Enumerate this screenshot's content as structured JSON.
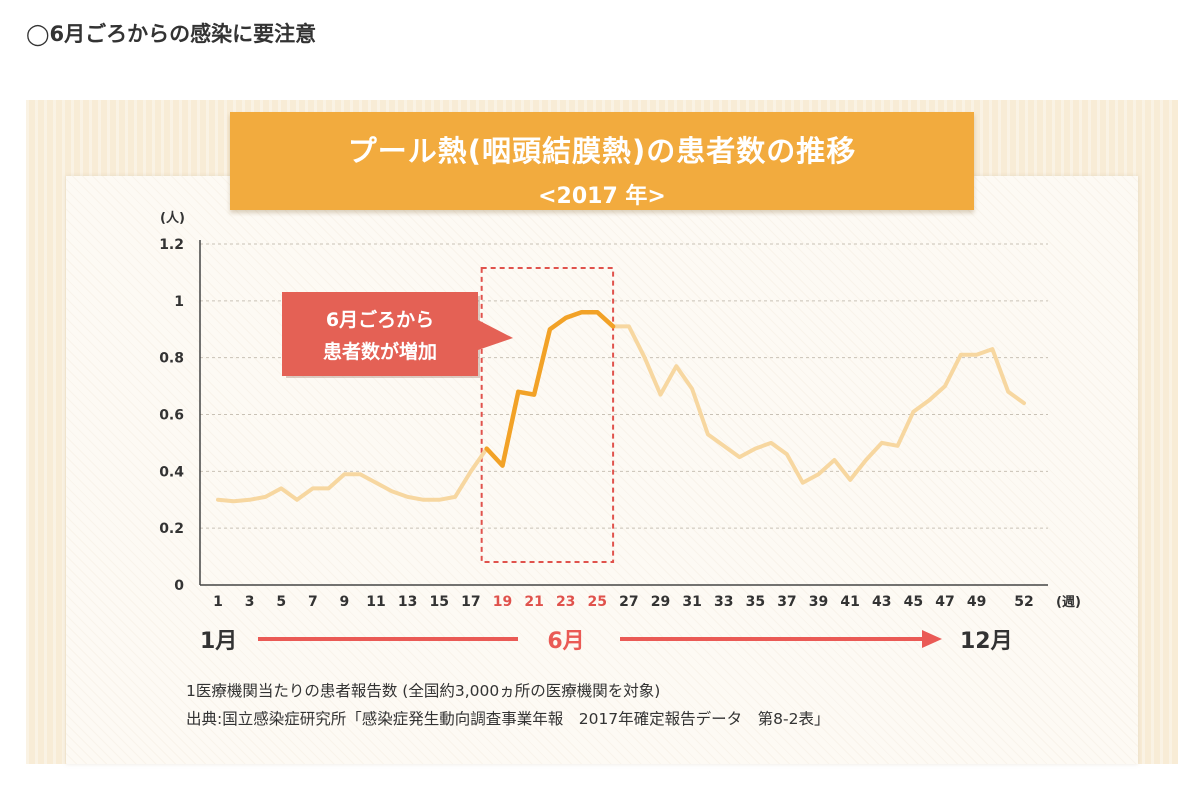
{
  "heading": "◯6月ごろからの感染に要注意",
  "chart_data": {
    "type": "line",
    "title": "プール熱(咽頭結膜熱)の患者数の推移",
    "subtitle": "<2017 年>",
    "ylabel": "(人)",
    "xlabel": "(週)",
    "ylim": [
      0,
      1.2
    ],
    "yticks": [
      "0",
      "0.2",
      "0.4",
      "0.6",
      "0.8",
      "1",
      "1.2"
    ],
    "grid": true,
    "x_tick_labels": [
      "1",
      "3",
      "5",
      "7",
      "9",
      "11",
      "13",
      "15",
      "17",
      "19",
      "21",
      "23",
      "25",
      "27",
      "29",
      "31",
      "33",
      "35",
      "37",
      "39",
      "41",
      "43",
      "45",
      "47",
      "49",
      "52"
    ],
    "highlight_ticks": [
      "19",
      "21",
      "23",
      "25"
    ],
    "x": [
      1,
      2,
      3,
      4,
      5,
      6,
      7,
      8,
      9,
      10,
      11,
      12,
      13,
      14,
      15,
      16,
      17,
      18,
      19,
      20,
      21,
      22,
      23,
      24,
      25,
      26,
      27,
      28,
      29,
      30,
      31,
      32,
      33,
      34,
      35,
      36,
      37,
      38,
      39,
      40,
      41,
      42,
      43,
      44,
      45,
      46,
      47,
      48,
      49,
      50,
      51,
      52
    ],
    "series": [
      {
        "values": [
          0.3,
          0.295,
          0.3,
          0.31,
          0.34,
          0.3,
          0.34,
          0.34,
          0.39,
          0.39,
          0.36,
          0.33,
          0.31,
          0.3,
          0.3,
          0.31,
          0.4,
          0.48,
          0.42,
          0.68,
          0.67,
          0.9,
          0.94,
          0.96,
          0.96,
          0.91,
          0.91,
          0.8,
          0.67,
          0.77,
          0.69,
          0.53,
          0.49,
          0.45,
          0.48,
          0.5,
          0.46,
          0.36,
          0.39,
          0.44,
          0.37,
          0.44,
          0.5,
          0.49,
          0.61,
          0.65,
          0.7,
          0.81,
          0.81,
          0.83,
          0.68,
          0.64
        ],
        "color": "#f7d7a0",
        "highlight_range": [
          18,
          26
        ],
        "highlight_color": "#f2a227"
      }
    ],
    "annotation": {
      "line1": "6月ごろから",
      "line2": "患者数が増加",
      "color": "#e46155"
    },
    "months": {
      "start": "1月",
      "mid": "6月",
      "end": "12月",
      "arrow_color": "#ea5a55"
    }
  },
  "footnote": {
    "line1": "1医療機関当たりの患者報告数 (全国約3,000ヵ所の医療機関を対象)",
    "line2": "出典:国立感染症研究所「感染症発生動向調査事業年報　2017年確定報告データ　第8-2表」"
  }
}
